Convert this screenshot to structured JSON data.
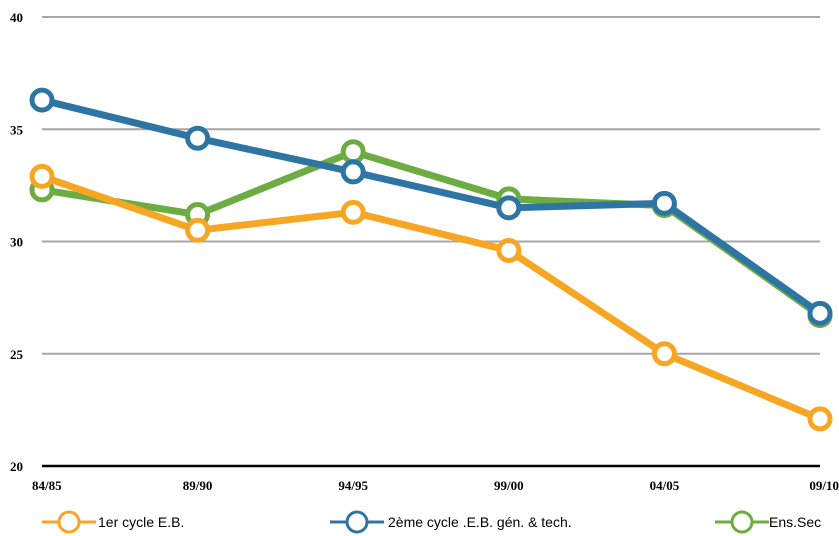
{
  "chart_data": {
    "type": "line",
    "title": "",
    "xlabel": "",
    "ylabel": "",
    "categories": [
      "84/85",
      "89/90",
      "94/95",
      "99/00",
      "04/05",
      "09/10"
    ],
    "ylim": [
      20,
      40
    ],
    "yticks": [
      20,
      25,
      30,
      35,
      40
    ],
    "grid": true,
    "legend_position": "bottom",
    "series": [
      {
        "name": "Ens.Sec",
        "color": "#6cac42",
        "values": [
          32.3,
          31.2,
          34.0,
          31.9,
          31.6,
          26.7
        ]
      },
      {
        "name": "1er cycle E.B.",
        "color": "#f6a623",
        "values": [
          32.9,
          30.5,
          31.3,
          29.6,
          25.0,
          22.1
        ]
      },
      {
        "name": "2ème cycle .E.B. gén. & tech.",
        "color": "#2f75a4",
        "values": [
          36.3,
          34.6,
          33.1,
          31.5,
          31.7,
          26.8
        ]
      }
    ],
    "legend": [
      {
        "label": "1er cycle E.B.",
        "color": "#f6a623"
      },
      {
        "label": "2ème cycle .E.B. gén. & tech.",
        "color": "#2f75a4"
      },
      {
        "label": "Ens.Sec",
        "color": "#6cac42"
      }
    ]
  }
}
